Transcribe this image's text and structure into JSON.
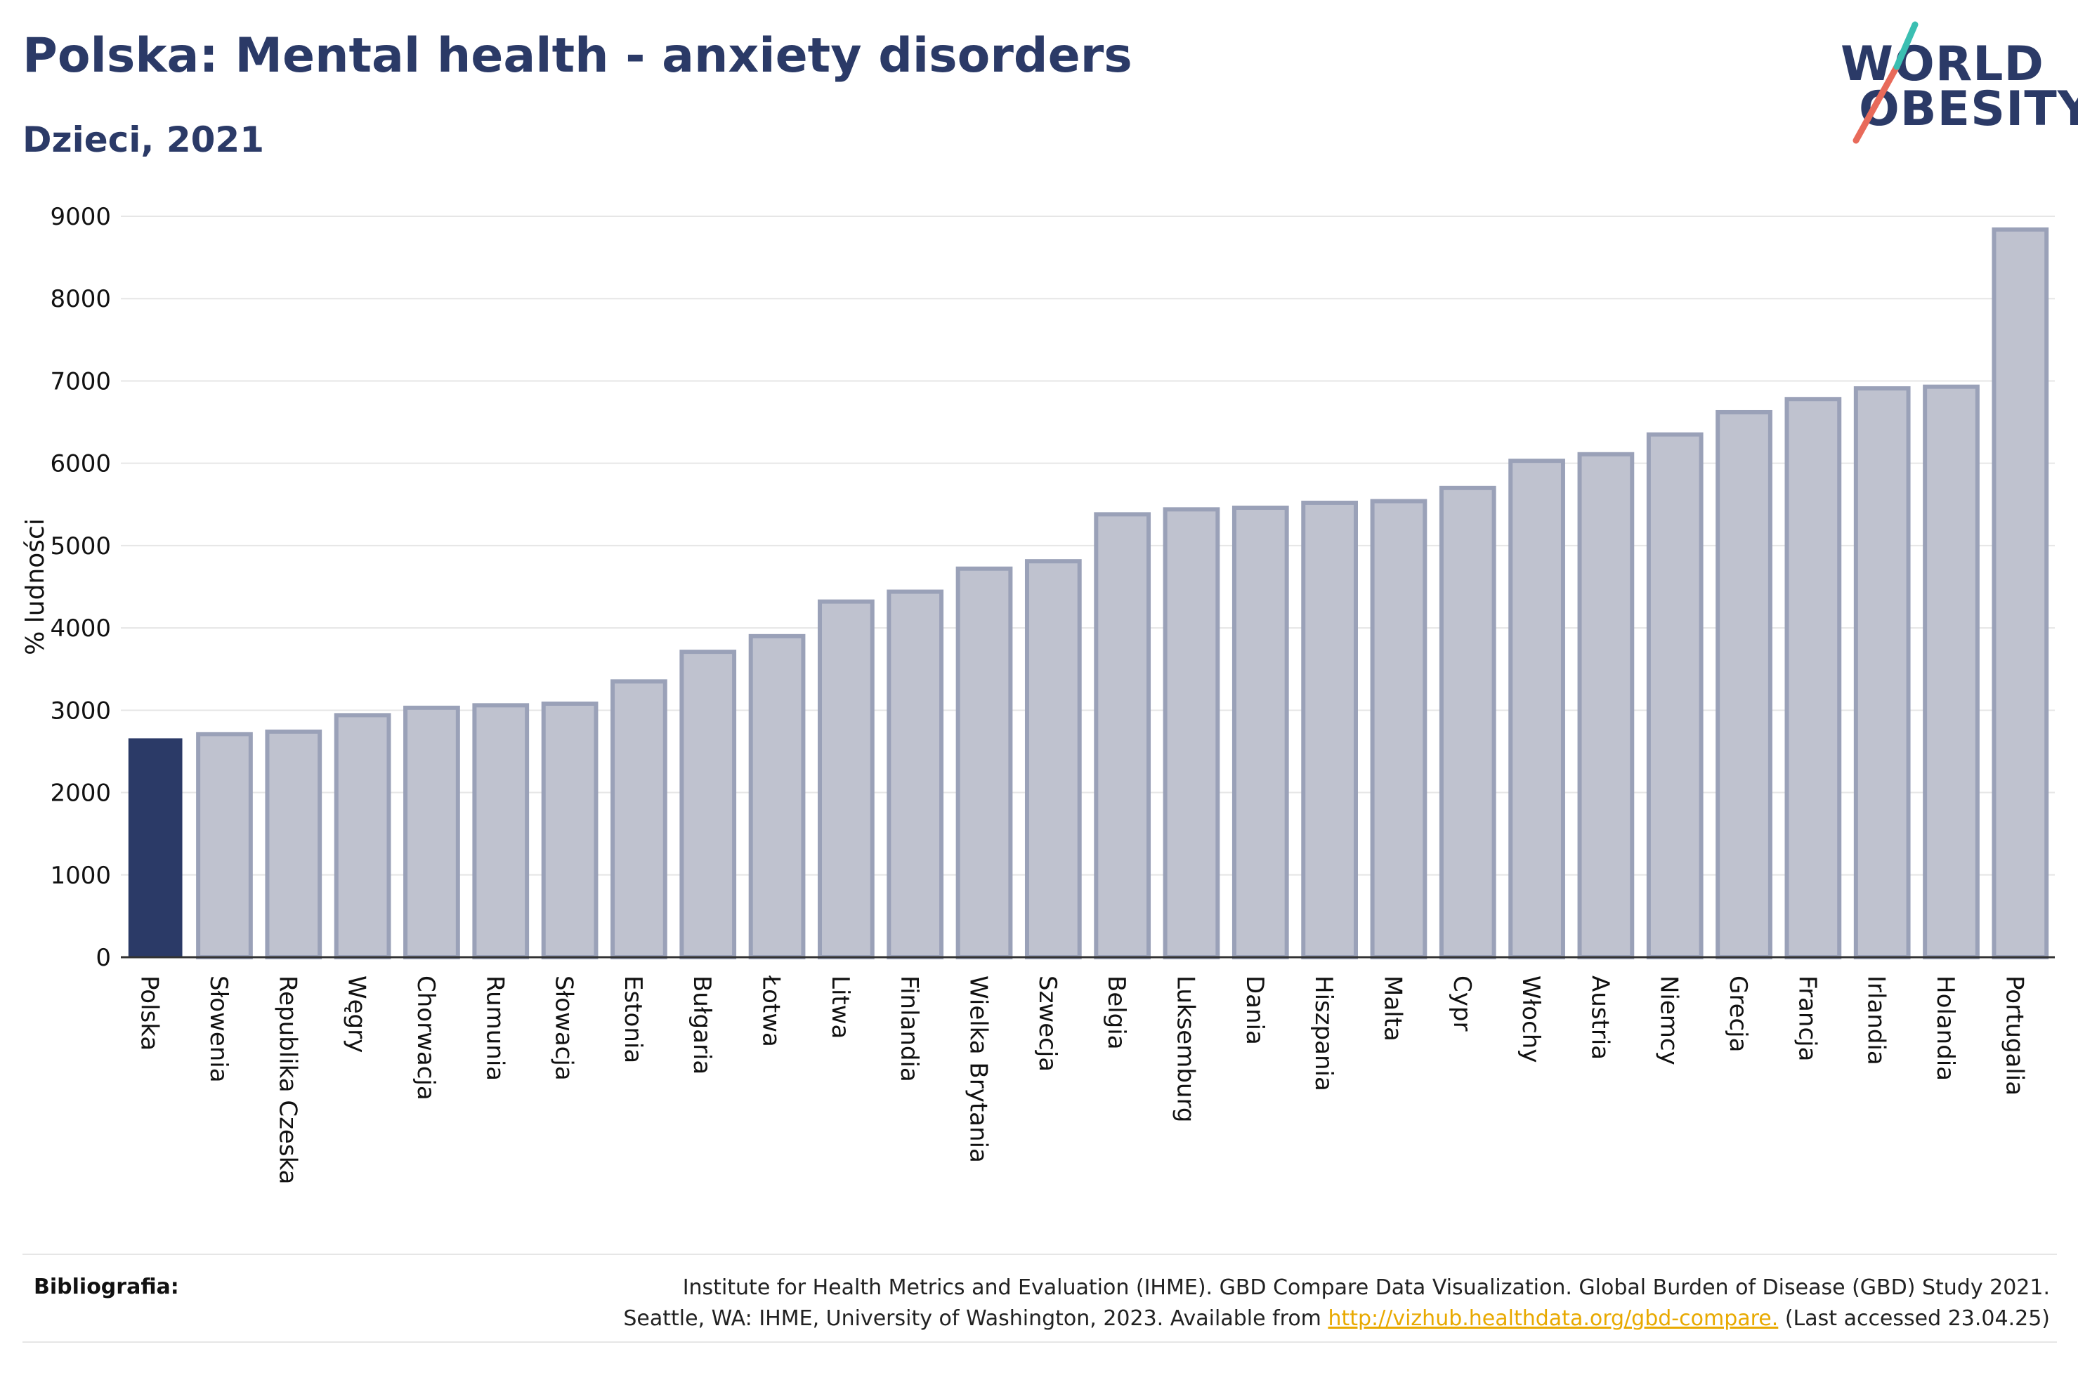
{
  "header": {
    "title": "Polska: Mental health - anxiety disorders",
    "subtitle": "Dzieci, 2021"
  },
  "logo": {
    "line1": "WORLD",
    "line2": "OBESITY",
    "accent_colors": [
      "#e86a5a",
      "#3bbfb2"
    ]
  },
  "colors": {
    "highlight_bar": "#2b3a67",
    "other_bar_fill": "#bfc2cf",
    "other_bar_stroke": "#9aa1b8",
    "grid": "#e6e6e6",
    "axis": "#333333"
  },
  "chart_data": {
    "type": "bar",
    "title": "",
    "xlabel": "",
    "ylabel": "% ludności",
    "ylim": [
      0,
      9000
    ],
    "yticks": [
      0,
      1000,
      2000,
      3000,
      4000,
      5000,
      6000,
      7000,
      8000,
      9000
    ],
    "grid": true,
    "highlight": "Polska",
    "categories": [
      "Polska",
      "Słowenia",
      "Republika Czeska",
      "Węgry",
      "Chorwacja",
      "Rumunia",
      "Słowacja",
      "Estonia",
      "Bułgaria",
      "Łotwa",
      "Litwa",
      "Finlandia",
      "Wielka Brytania",
      "Szwecja",
      "Belgia",
      "Luksemburg",
      "Dania",
      "Hiszpania",
      "Malta",
      "Cypr",
      "Włochy",
      "Austria",
      "Niemcy",
      "Grecja",
      "Francja",
      "Irlandia",
      "Holandia",
      "Portugalia"
    ],
    "values": [
      2650,
      2710,
      2740,
      2940,
      3030,
      3060,
      3080,
      3350,
      3710,
      3900,
      4320,
      4440,
      4720,
      4810,
      5380,
      5440,
      5460,
      5520,
      5540,
      5700,
      6030,
      6110,
      6350,
      6620,
      6780,
      6910,
      6930,
      8840
    ]
  },
  "footer": {
    "bibliography_label": "Bibliografia:",
    "citation_line1": "Institute for Health Metrics and Evaluation (IHME). GBD Compare Data Visualization. Global Burden of Disease (GBD) Study 2021.",
    "citation_line2_prefix": "Seattle, WA: IHME, University of Washington, 2023. Available from ",
    "citation_link": "http://vizhub.healthdata.org/gbd-compare.",
    "citation_suffix": " (Last accessed 23.04.25)"
  }
}
